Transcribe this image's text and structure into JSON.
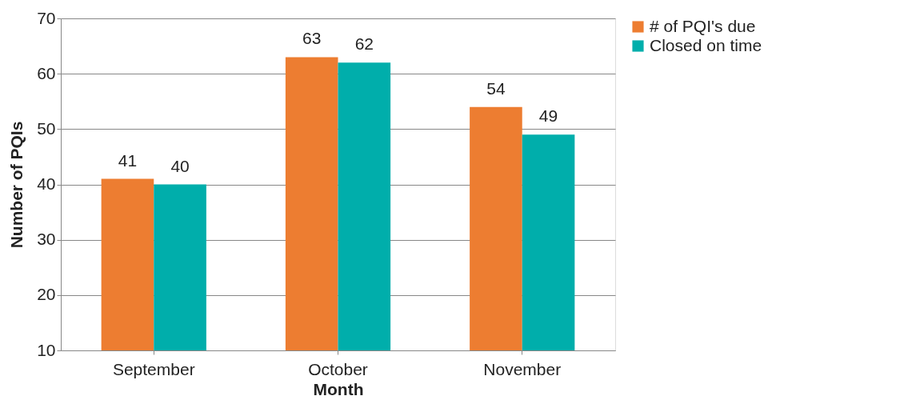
{
  "chart_data": {
    "type": "bar",
    "xlabel": "Month",
    "ylabel": "Number of PQIs",
    "categories": [
      "September",
      "October",
      "November"
    ],
    "series": [
      {
        "name": "# of PQI's due",
        "color": "#ed7d31",
        "values": [
          41,
          63,
          54
        ]
      },
      {
        "name": "Closed on time",
        "color": "#00aeab",
        "values": [
          40,
          62,
          49
        ]
      }
    ],
    "ylim": [
      10,
      70
    ],
    "yticks": [
      10,
      20,
      30,
      40,
      50,
      60,
      70
    ],
    "grid": "y",
    "legend": "right",
    "data_labels": true
  }
}
